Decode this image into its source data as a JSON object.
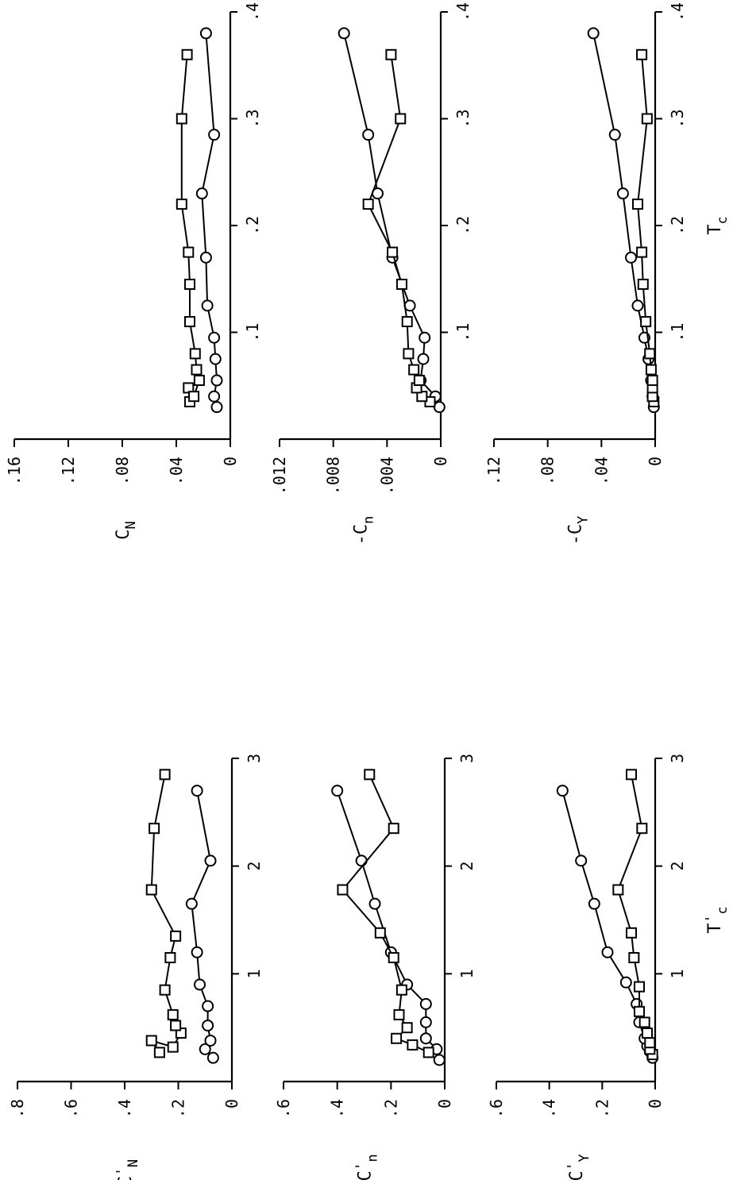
{
  "chart_data": [
    {
      "id": "tc-cn",
      "type": "line",
      "ylabel": "C",
      "ylabel_sub": "N",
      "ylabel_prime": "",
      "ylabel_neg": "",
      "xlabel": "",
      "x_ticks": [
        ".1",
        ".2",
        ".3",
        ".4"
      ],
      "y_ticks": [
        "0",
        ".04",
        ".08",
        ".12",
        ".16"
      ],
      "xlim": [
        0,
        0.4
      ],
      "ylim": [
        0,
        0.16
      ],
      "series": [
        {
          "marker": "circle",
          "points": [
            [
              0.03,
              0.01
            ],
            [
              0.04,
              0.012
            ],
            [
              0.055,
              0.01
            ],
            [
              0.075,
              0.011
            ],
            [
              0.095,
              0.012
            ],
            [
              0.125,
              0.017
            ],
            [
              0.17,
              0.018
            ],
            [
              0.23,
              0.021
            ],
            [
              0.285,
              0.012
            ],
            [
              0.38,
              0.018
            ]
          ]
        },
        {
          "marker": "square",
          "points": [
            [
              0.035,
              0.03
            ],
            [
              0.048,
              0.031
            ],
            [
              0.04,
              0.027
            ],
            [
              0.055,
              0.023
            ],
            [
              0.065,
              0.025
            ],
            [
              0.08,
              0.026
            ],
            [
              0.11,
              0.03
            ],
            [
              0.145,
              0.03
            ],
            [
              0.175,
              0.031
            ],
            [
              0.22,
              0.036
            ],
            [
              0.3,
              0.036
            ],
            [
              0.36,
              0.032
            ]
          ]
        }
      ]
    },
    {
      "id": "tc-cn-yaw",
      "type": "line",
      "ylabel": "-C",
      "ylabel_sub": "n",
      "ylabel_prime": "",
      "ylabel_neg": "",
      "xlabel": "",
      "x_ticks": [
        ".1",
        ".2",
        ".3",
        ".4"
      ],
      "y_ticks": [
        "0",
        ".004",
        ".008",
        ".012"
      ],
      "xlim": [
        0,
        0.4
      ],
      "ylim": [
        0,
        0.012
      ],
      "series": [
        {
          "marker": "circle",
          "points": [
            [
              0.03,
              0.0001
            ],
            [
              0.04,
              0.0004
            ],
            [
              0.055,
              0.0015
            ],
            [
              0.075,
              0.0013
            ],
            [
              0.095,
              0.0012
            ],
            [
              0.125,
              0.0023
            ],
            [
              0.17,
              0.0036
            ],
            [
              0.23,
              0.0047
            ],
            [
              0.285,
              0.0054
            ],
            [
              0.38,
              0.0072
            ]
          ]
        },
        {
          "marker": "square",
          "points": [
            [
              0.035,
              0.0008
            ],
            [
              0.04,
              0.0014
            ],
            [
              0.048,
              0.0018
            ],
            [
              0.055,
              0.0016
            ],
            [
              0.065,
              0.002
            ],
            [
              0.08,
              0.0024
            ],
            [
              0.11,
              0.0025
            ],
            [
              0.145,
              0.0029
            ],
            [
              0.175,
              0.0036
            ],
            [
              0.22,
              0.0054
            ],
            [
              0.3,
              0.003
            ],
            [
              0.36,
              0.0037
            ]
          ]
        }
      ]
    },
    {
      "id": "tc-cy",
      "type": "line",
      "ylabel": "-C",
      "ylabel_sub": "Y",
      "ylabel_prime": "",
      "ylabel_neg": "",
      "xlabel": "T",
      "xlabel_sub": "c",
      "xlabel_prime": "",
      "x_ticks": [
        ".1",
        ".2",
        ".3",
        ".4"
      ],
      "y_ticks": [
        "0",
        ".04",
        ".08",
        ".12"
      ],
      "xlim": [
        0,
        0.4
      ],
      "ylim": [
        0,
        0.12
      ],
      "series": [
        {
          "marker": "circle",
          "points": [
            [
              0.03,
              0.001
            ],
            [
              0.04,
              0.002
            ],
            [
              0.055,
              0.003
            ],
            [
              0.075,
              0.005
            ],
            [
              0.095,
              0.008
            ],
            [
              0.125,
              0.013
            ],
            [
              0.17,
              0.018
            ],
            [
              0.23,
              0.024
            ],
            [
              0.285,
              0.03
            ],
            [
              0.38,
              0.046
            ]
          ]
        },
        {
          "marker": "square",
          "points": [
            [
              0.035,
              0.001
            ],
            [
              0.04,
              0.002
            ],
            [
              0.048,
              0.002
            ],
            [
              0.055,
              0.002
            ],
            [
              0.065,
              0.003
            ],
            [
              0.08,
              0.004
            ],
            [
              0.11,
              0.007
            ],
            [
              0.145,
              0.009
            ],
            [
              0.175,
              0.01
            ],
            [
              0.22,
              0.013
            ],
            [
              0.3,
              0.006
            ],
            [
              0.36,
              0.01
            ]
          ]
        }
      ]
    },
    {
      "id": "tcp-cn",
      "type": "line",
      "ylabel": "C",
      "ylabel_sub": "N",
      "ylabel_prime": "'",
      "xlabel": "",
      "x_ticks": [
        "1",
        "2",
        "3"
      ],
      "y_ticks": [
        "0",
        ".2",
        ".4",
        ".6",
        ".8"
      ],
      "xlim": [
        0,
        3
      ],
      "ylim": [
        0,
        0.8
      ],
      "series": [
        {
          "marker": "circle",
          "points": [
            [
              0.22,
              0.07
            ],
            [
              0.3,
              0.1
            ],
            [
              0.38,
              0.08
            ],
            [
              0.52,
              0.09
            ],
            [
              0.7,
              0.09
            ],
            [
              0.9,
              0.12
            ],
            [
              1.2,
              0.13
            ],
            [
              1.65,
              0.15
            ],
            [
              2.05,
              0.08
            ],
            [
              2.7,
              0.13
            ]
          ]
        },
        {
          "marker": "square",
          "points": [
            [
              0.27,
              0.27
            ],
            [
              0.38,
              0.3
            ],
            [
              0.32,
              0.22
            ],
            [
              0.45,
              0.19
            ],
            [
              0.52,
              0.21
            ],
            [
              0.62,
              0.22
            ],
            [
              0.85,
              0.25
            ],
            [
              1.15,
              0.23
            ],
            [
              1.35,
              0.21
            ],
            [
              1.78,
              0.3
            ],
            [
              2.35,
              0.29
            ],
            [
              2.85,
              0.25
            ]
          ]
        }
      ]
    },
    {
      "id": "tcp-cn-yaw",
      "type": "line",
      "ylabel": "-C",
      "ylabel_sub": "n",
      "ylabel_prime": "'",
      "xlabel": "",
      "x_ticks": [
        "1",
        "2",
        "3"
      ],
      "y_ticks": [
        "0",
        ".2",
        ".4",
        ".6"
      ],
      "xlim": [
        0,
        3
      ],
      "ylim": [
        0,
        0.6
      ],
      "series": [
        {
          "marker": "circle",
          "points": [
            [
              0.2,
              0.02
            ],
            [
              0.3,
              0.03
            ],
            [
              0.4,
              0.07
            ],
            [
              0.55,
              0.07
            ],
            [
              0.72,
              0.07
            ],
            [
              0.9,
              0.14
            ],
            [
              1.2,
              0.2
            ],
            [
              1.65,
              0.26
            ],
            [
              2.05,
              0.31
            ],
            [
              2.7,
              0.4
            ]
          ]
        },
        {
          "marker": "square",
          "points": [
            [
              0.27,
              0.06
            ],
            [
              0.34,
              0.12
            ],
            [
              0.4,
              0.18
            ],
            [
              0.5,
              0.14
            ],
            [
              0.62,
              0.17
            ],
            [
              0.85,
              0.16
            ],
            [
              1.15,
              0.19
            ],
            [
              1.38,
              0.24
            ],
            [
              1.78,
              0.38
            ],
            [
              2.35,
              0.19
            ],
            [
              2.85,
              0.28
            ]
          ]
        }
      ]
    },
    {
      "id": "tcp-cy",
      "type": "line",
      "ylabel": "-C",
      "ylabel_sub": "Y",
      "ylabel_prime": "'",
      "xlabel": "T",
      "xlabel_sub": "c",
      "xlabel_prime": "'",
      "x_ticks": [
        "1",
        "2",
        "3"
      ],
      "y_ticks": [
        "0",
        ".2",
        ".4",
        ".6"
      ],
      "xlim": [
        0,
        3
      ],
      "ylim": [
        0,
        0.6
      ],
      "series": [
        {
          "marker": "circle",
          "points": [
            [
              0.22,
              0.01
            ],
            [
              0.28,
              0.02
            ],
            [
              0.33,
              0.03
            ],
            [
              0.4,
              0.04
            ],
            [
              0.55,
              0.06
            ],
            [
              0.72,
              0.07
            ],
            [
              0.92,
              0.11
            ],
            [
              1.2,
              0.18
            ],
            [
              1.65,
              0.23
            ],
            [
              2.05,
              0.28
            ],
            [
              2.7,
              0.35
            ]
          ]
        },
        {
          "marker": "square",
          "points": [
            [
              0.25,
              0.01
            ],
            [
              0.3,
              0.02
            ],
            [
              0.36,
              0.02
            ],
            [
              0.45,
              0.03
            ],
            [
              0.55,
              0.04
            ],
            [
              0.65,
              0.06
            ],
            [
              0.88,
              0.06
            ],
            [
              1.15,
              0.08
            ],
            [
              1.38,
              0.09
            ],
            [
              1.78,
              0.14
            ],
            [
              2.35,
              0.05
            ],
            [
              2.85,
              0.09
            ]
          ]
        }
      ]
    }
  ]
}
